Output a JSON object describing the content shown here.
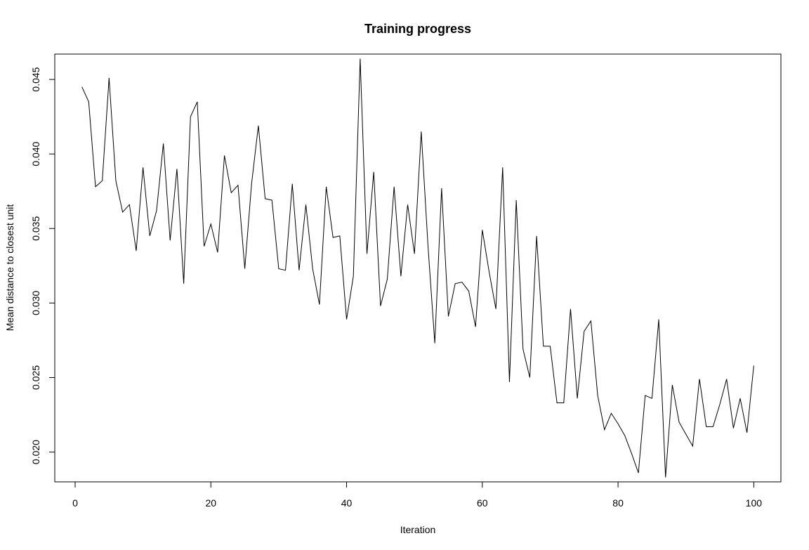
{
  "chart_data": {
    "type": "line",
    "title": "Training progress",
    "xlabel": "Iteration",
    "ylabel": "Mean distance to closest unit",
    "xlim": [
      -3,
      104
    ],
    "ylim": [
      0.018,
      0.0467
    ],
    "xticks": [
      0,
      20,
      40,
      60,
      80,
      100
    ],
    "yticks": [
      0.02,
      0.025,
      0.03,
      0.035,
      0.04,
      0.045
    ],
    "ytick_labels": [
      "0.020",
      "0.025",
      "0.030",
      "0.035",
      "0.040",
      "0.045"
    ],
    "grid": false,
    "legend": "none",
    "series": [
      {
        "color": "#000000",
        "x": [
          1,
          2,
          3,
          4,
          5,
          6,
          7,
          8,
          9,
          10,
          11,
          12,
          13,
          14,
          15,
          16,
          17,
          18,
          19,
          20,
          21,
          22,
          23,
          24,
          25,
          26,
          27,
          28,
          29,
          30,
          31,
          32,
          33,
          34,
          35,
          36,
          37,
          38,
          39,
          40,
          41,
          42,
          43,
          44,
          45,
          46,
          47,
          48,
          49,
          50,
          51,
          52,
          53,
          54,
          55,
          56,
          57,
          58,
          59,
          60,
          61,
          62,
          63,
          64,
          65,
          66,
          67,
          68,
          69,
          70,
          71,
          72,
          73,
          74,
          75,
          76,
          77,
          78,
          79,
          80,
          81,
          82,
          83,
          84,
          85,
          86,
          87,
          88,
          89,
          90,
          91,
          92,
          93,
          94,
          95,
          96,
          97,
          98,
          99,
          100
        ],
        "values": [
          0.0445,
          0.0435,
          0.0378,
          0.0382,
          0.0451,
          0.0382,
          0.0361,
          0.0366,
          0.0335,
          0.0391,
          0.0345,
          0.0362,
          0.0407,
          0.0342,
          0.039,
          0.0313,
          0.0425,
          0.0435,
          0.0338,
          0.0353,
          0.0334,
          0.0399,
          0.0374,
          0.0379,
          0.0323,
          0.038,
          0.0419,
          0.037,
          0.0369,
          0.0323,
          0.0322,
          0.038,
          0.0322,
          0.0366,
          0.0323,
          0.0299,
          0.0378,
          0.0344,
          0.0345,
          0.0289,
          0.0318,
          0.0464,
          0.0333,
          0.0388,
          0.0298,
          0.0316,
          0.0378,
          0.0318,
          0.0366,
          0.0333,
          0.0415,
          0.0338,
          0.0273,
          0.0377,
          0.0291,
          0.0313,
          0.0314,
          0.0308,
          0.0284,
          0.0349,
          0.0321,
          0.0296,
          0.0391,
          0.0247,
          0.0369,
          0.0269,
          0.025,
          0.0345,
          0.0271,
          0.0271,
          0.0233,
          0.0233,
          0.0296,
          0.0236,
          0.0281,
          0.0288,
          0.0238,
          0.0215,
          0.0226,
          0.0219,
          0.0211,
          0.0199,
          0.0186,
          0.0238,
          0.0236,
          0.0289,
          0.0183,
          0.0245,
          0.022,
          0.0212,
          0.0204,
          0.0249,
          0.0217,
          0.0217,
          0.0232,
          0.0249,
          0.0216,
          0.0236,
          0.0213,
          0.0258
        ]
      }
    ]
  }
}
